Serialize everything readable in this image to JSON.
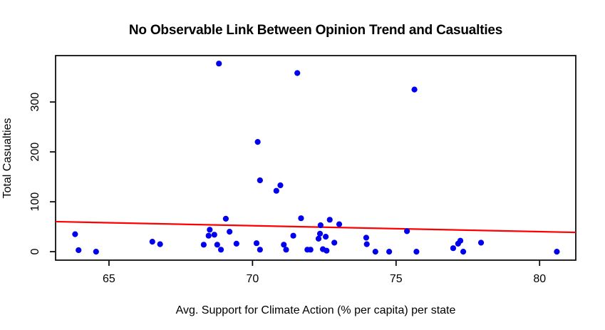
{
  "chart_data": {
    "type": "scatter",
    "title": "No Observable Link Between Opinion Trend and Casualties",
    "xlabel": "Avg. Support for Climate Action (% per capita) per state",
    "ylabel": "Total Casualties",
    "x_ticks": [
      65,
      70,
      75,
      80
    ],
    "y_ticks": [
      0,
      100,
      200,
      300
    ],
    "xlim": [
      63.14,
      81.26
    ],
    "ylim": [
      -17,
      393
    ],
    "grid": false,
    "point_color": "#0000EE",
    "regression_line_color": "#FF0000",
    "axis_color": "#000000",
    "regression_line": {
      "x1": 63.14,
      "y1": 60.2,
      "x2": 81.26,
      "y2": 38.6
    },
    "points": [
      [
        63.82,
        35
      ],
      [
        63.94,
        3
      ],
      [
        64.55,
        0
      ],
      [
        66.51,
        20
      ],
      [
        66.78,
        15
      ],
      [
        68.3,
        14
      ],
      [
        68.47,
        32
      ],
      [
        68.51,
        44
      ],
      [
        68.67,
        34
      ],
      [
        68.77,
        14
      ],
      [
        68.83,
        377
      ],
      [
        68.9,
        4
      ],
      [
        69.07,
        66
      ],
      [
        69.2,
        40
      ],
      [
        69.44,
        16
      ],
      [
        70.14,
        17
      ],
      [
        70.18,
        220
      ],
      [
        70.26,
        143
      ],
      [
        70.26,
        4
      ],
      [
        70.83,
        122
      ],
      [
        70.97,
        133
      ],
      [
        71.09,
        14
      ],
      [
        71.17,
        4
      ],
      [
        71.42,
        32
      ],
      [
        71.56,
        358
      ],
      [
        71.69,
        67
      ],
      [
        71.91,
        4
      ],
      [
        72.02,
        4
      ],
      [
        72.3,
        26
      ],
      [
        72.35,
        36
      ],
      [
        72.37,
        53
      ],
      [
        72.45,
        5
      ],
      [
        72.55,
        30
      ],
      [
        72.58,
        2
      ],
      [
        72.69,
        64
      ],
      [
        72.85,
        18
      ],
      [
        73.02,
        55
      ],
      [
        73.96,
        28
      ],
      [
        73.98,
        15
      ],
      [
        74.28,
        0
      ],
      [
        74.76,
        0
      ],
      [
        75.38,
        41
      ],
      [
        75.64,
        325
      ],
      [
        75.71,
        0
      ],
      [
        76.99,
        7
      ],
      [
        77.16,
        16
      ],
      [
        77.24,
        22
      ],
      [
        77.34,
        0
      ],
      [
        77.96,
        18
      ],
      [
        80.6,
        0
      ]
    ]
  }
}
